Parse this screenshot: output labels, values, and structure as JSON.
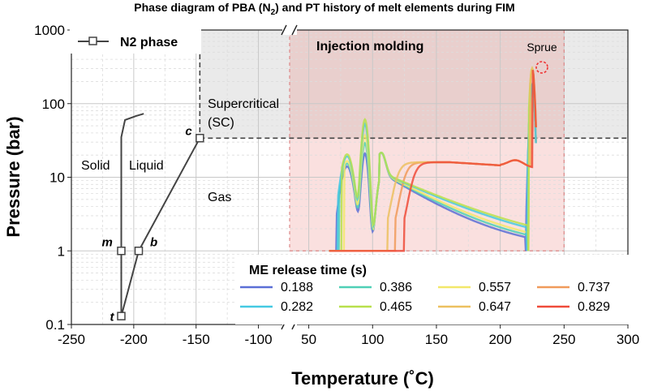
{
  "chart_data": {
    "type": "line",
    "title_prefix": "Phase diagram of PBA (N",
    "title_sub": "2",
    "title_suffix": ") and PT history of melt elements during FIM",
    "xlabel": "Temperature (˚C)",
    "ylabel": "Pressure (bar)",
    "x_scale": "broken-linear",
    "x_segments": [
      [
        -250,
        -75
      ],
      [
        35,
        300
      ]
    ],
    "y_scale": "log",
    "ylim": [
      0.1,
      1000
    ],
    "x_ticks": [
      "-250",
      "-200",
      "-150",
      "-100",
      "50",
      "100",
      "150",
      "200",
      "250",
      "300"
    ],
    "x_tick_values": [
      -250,
      -200,
      -150,
      -100,
      50,
      100,
      150,
      200,
      250,
      300
    ],
    "y_ticks": [
      "0.1",
      "1",
      "10",
      "100",
      "1000"
    ],
    "y_tick_values": [
      0.1,
      1,
      10,
      100,
      1000
    ],
    "grid": true,
    "n2_phase": {
      "name": "N2 phase",
      "melting_curve": [
        [
          -210,
          0.13
        ],
        [
          -210,
          1
        ],
        [
          -210,
          35
        ],
        [
          -207,
          60
        ],
        [
          -198,
          68
        ],
        [
          -192,
          73
        ]
      ],
      "boiling_curve": [
        [
          -210,
          0.13
        ],
        [
          -196,
          1
        ],
        [
          -147,
          34
        ]
      ],
      "markers": [
        {
          "label": "t",
          "x": -210,
          "y": 0.13
        },
        {
          "label": "m",
          "x": -210,
          "y": 1
        },
        {
          "label": "b",
          "x": -196,
          "y": 1
        },
        {
          "label": "c",
          "x": -147,
          "y": 34
        }
      ]
    },
    "critical_pressure": 34,
    "regions": [
      {
        "label": "Solid"
      },
      {
        "label": "Liquid"
      },
      {
        "label": "Gas"
      },
      {
        "label": "Supercritical"
      },
      {
        "label": "(SC)"
      },
      {
        "label": "Injection molding"
      },
      {
        "label": "Sprue"
      }
    ],
    "injection_molding_range": [
      35,
      250
    ],
    "legend_title": "ME release time (s)",
    "series": [
      {
        "name": "0.188",
        "color": "#5a6fd6",
        "t0": 72,
        "t1": 220
      },
      {
        "name": "0.386",
        "color": "#4fd0b6",
        "t0": 74,
        "t1": 222
      },
      {
        "name": "0.557",
        "color": "#f2e86a",
        "t0": 78,
        "t1": 222
      },
      {
        "name": "0.737",
        "color": "#f09a5a",
        "t0": 118,
        "t1": 224
      },
      {
        "name": "0.282",
        "color": "#45c9e2",
        "t0": 73,
        "t1": 221
      },
      {
        "name": "0.465",
        "color": "#b8e04c",
        "t0": 76,
        "t1": 222
      },
      {
        "name": "0.647",
        "color": "#ecc060",
        "t0": 112,
        "t1": 223
      },
      {
        "name": "0.829",
        "color": "#ef4b3a",
        "t0": 125,
        "t1": 225
      }
    ]
  }
}
